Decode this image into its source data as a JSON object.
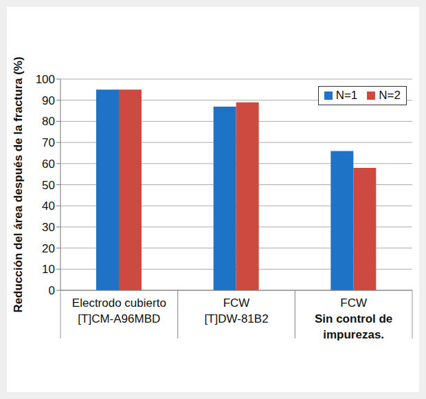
{
  "chart_data": {
    "type": "bar",
    "y_label": "Reducción del área después de la fractura (%)",
    "categories": [
      "Electrodo cubierto\n[T]CM-A96MBD",
      "FCW\n[T]DW-81B2",
      "FCW\nSin control de\nimpurezas."
    ],
    "series": [
      {
        "name": "N=1",
        "color": "#1f73c7",
        "values": [
          95,
          87,
          66
        ]
      },
      {
        "name": "N=2",
        "color": "#cd4a40",
        "values": [
          95,
          89,
          58
        ]
      }
    ],
    "ylim": [
      0,
      100
    ],
    "yticks": [
      0,
      10,
      20,
      30,
      40,
      50,
      60,
      70,
      80,
      90,
      100
    ],
    "grid": true,
    "legend": "upper right"
  }
}
